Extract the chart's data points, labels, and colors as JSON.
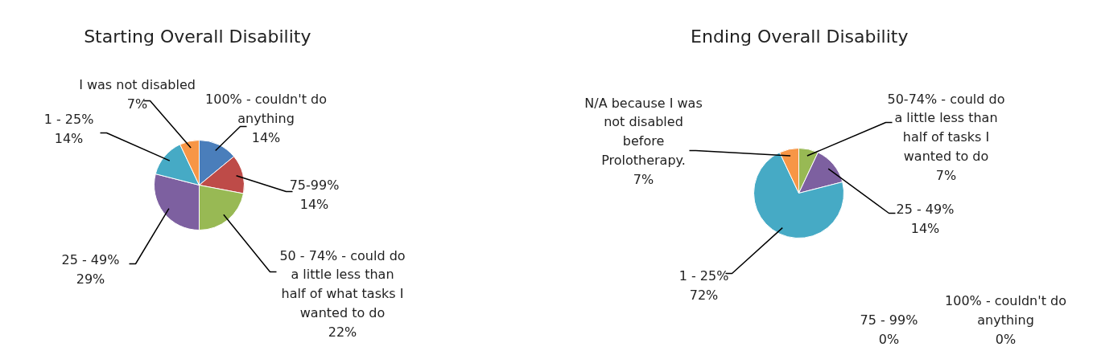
{
  "chart_data": [
    {
      "type": "pie",
      "title": "Starting Overall Disability",
      "categories": [
        "100% - couldn't do anything",
        "75-99%",
        "50 - 74% - could do a little less than half of what tasks I wanted to do",
        "25 - 49%",
        "1 - 25%",
        "I was not disabled"
      ],
      "values": [
        14,
        14,
        22,
        29,
        14,
        7
      ],
      "value_labels": [
        "14%",
        "14%",
        "22%",
        "29%",
        "14%",
        "7%"
      ],
      "colors": [
        "#4a7ebb",
        "#be4b48",
        "#98b954",
        "#7d60a0",
        "#46aac5",
        "#f79646"
      ]
    },
    {
      "type": "pie",
      "title": "Ending Overall Disability",
      "categories": [
        "100% - couldn't do anything",
        "75 - 99%",
        "50-74% - could do a little less than half of tasks I wanted to do",
        "25 - 49%",
        "1 - 25%",
        "N/A because I was not disabled before Prolotherapy."
      ],
      "values": [
        0,
        0,
        7,
        14,
        72,
        7
      ],
      "value_labels": [
        "0%",
        "0%",
        "7%",
        "14%",
        "72%",
        "7%"
      ],
      "colors": [
        "#4a7ebb",
        "#be4b48",
        "#98b954",
        "#7d60a0",
        "#46aac5",
        "#f79646"
      ]
    }
  ]
}
